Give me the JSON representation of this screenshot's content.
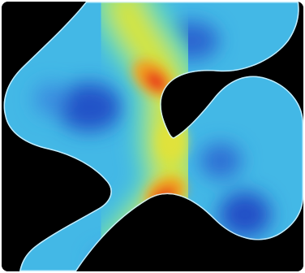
{
  "image": {
    "subject": "contour-heatmap",
    "background_color": "#000000",
    "frame_color": "#ffffff",
    "colormap": [
      "#1a2fa8",
      "#2f6fd6",
      "#3fb9e8",
      "#5fd6c8",
      "#9be06a",
      "#e8e83a",
      "#f4a020",
      "#e8321a"
    ],
    "channel_edge_color": "#cfefff"
  }
}
